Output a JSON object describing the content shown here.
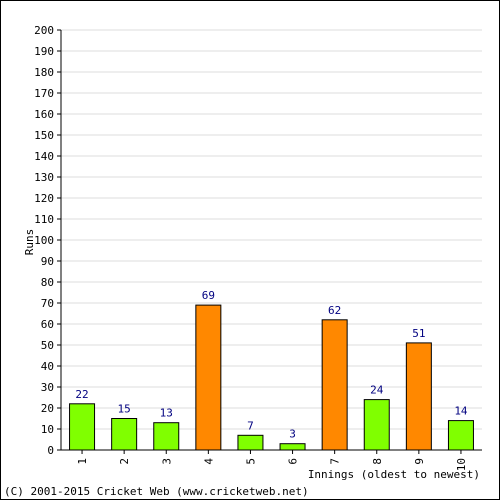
{
  "chart_data": {
    "type": "bar",
    "categories": [
      "1",
      "2",
      "3",
      "4",
      "5",
      "6",
      "7",
      "8",
      "9",
      "10"
    ],
    "values": [
      22,
      15,
      13,
      69,
      7,
      3,
      62,
      24,
      51,
      14
    ],
    "bar_colors": [
      "#80ff00",
      "#80ff00",
      "#80ff00",
      "#ff8800",
      "#80ff00",
      "#80ff00",
      "#ff8800",
      "#80ff00",
      "#ff8800",
      "#80ff00"
    ],
    "xlabel": "Innings (oldest to newest)",
    "ylabel": "Runs",
    "ylim": [
      0,
      200
    ],
    "ytick_step": 10,
    "grid": true,
    "legend": "none"
  },
  "footer": {
    "copyright": "(C) 2001-2015 Cricket Web (www.cricketweb.net)"
  },
  "colors": {
    "grid": "#dddddd",
    "label": "#000080",
    "bar_stroke": "#000000"
  }
}
